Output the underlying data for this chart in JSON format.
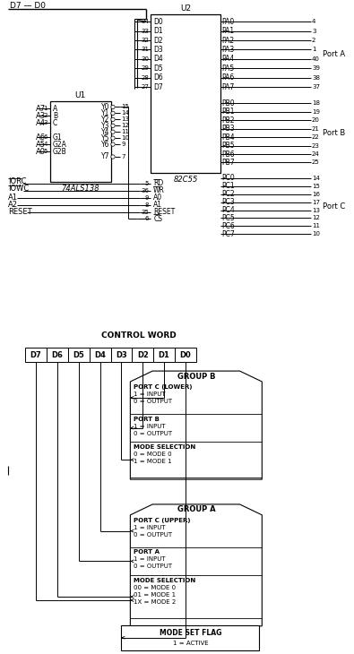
{
  "title_top": "D7 — D0",
  "chip_u2_label": "U2",
  "chip_u2_bottom": "82C55",
  "chip_u1_label": "U1",
  "chip_u1_bottom": "74ALS138",
  "port_a_label": "Port A",
  "port_b_label": "Port B",
  "port_c_label": "Port C",
  "d_pins": [
    "D0",
    "D1",
    "D2",
    "D3",
    "D4",
    "D5",
    "D6",
    "D7"
  ],
  "d_nums": [
    "34",
    "33",
    "32",
    "31",
    "30",
    "29",
    "28",
    "27"
  ],
  "ctrl_rows": [
    [
      "IORC",
      true,
      "5",
      "RD",
      true
    ],
    [
      "IOWC",
      true,
      "36",
      "WR",
      true
    ],
    [
      "A1",
      false,
      "9",
      "A0",
      false
    ],
    [
      "A2",
      false,
      "8",
      "A1",
      false
    ],
    [
      "RESET",
      false,
      "35",
      "RESET",
      false
    ]
  ],
  "cs_pin": [
    "6",
    "CS",
    true
  ],
  "pa_pins": [
    "PA0",
    "PA1",
    "PA2",
    "PA3",
    "PA4",
    "PA5",
    "PA6",
    "PA7"
  ],
  "pa_nums": [
    "4",
    "3",
    "2",
    "1",
    "40",
    "39",
    "38",
    "37"
  ],
  "pb_pins": [
    "PB0",
    "PB1",
    "PB2",
    "PB3",
    "PB4",
    "PB5",
    "PB6",
    "PB7"
  ],
  "pb_nums": [
    "18",
    "19",
    "20",
    "21",
    "22",
    "23",
    "24",
    "25"
  ],
  "pc_pins": [
    "PC0",
    "PC1",
    "PC2",
    "PC3",
    "PC4",
    "PC5",
    "PC6",
    "PC7"
  ],
  "pc_nums": [
    "14",
    "15",
    "16",
    "17",
    "13",
    "12",
    "11",
    "10"
  ],
  "u1_left": [
    [
      "A7",
      "1",
      "A"
    ],
    [
      "A3",
      "2",
      "B"
    ],
    [
      "A4",
      "3",
      "C"
    ],
    [
      "A6",
      "6",
      "G1"
    ],
    [
      "A5",
      "4",
      "G2A"
    ],
    [
      "A0",
      "5",
      "G2B"
    ]
  ],
  "u1_right": [
    [
      "Y0",
      "15"
    ],
    [
      "Y1",
      "14"
    ],
    [
      "Y2",
      "13"
    ],
    [
      "Y3",
      "12"
    ],
    [
      "Y4",
      "11"
    ],
    [
      "Y5",
      "10"
    ],
    [
      "Y6",
      "9"
    ],
    [
      "Y7",
      "7"
    ]
  ],
  "control_word_title": "CONTROL WORD",
  "control_bits": [
    "D7",
    "D6",
    "D5",
    "D4",
    "D3",
    "D2",
    "D1",
    "D0"
  ],
  "group_b_title": "GROUP B",
  "group_b_sections": [
    {
      "title": "PORT C (LOWER)",
      "lines": [
        "1 = INPUT",
        "0 = OUTPUT"
      ]
    },
    {
      "title": "PORT B",
      "lines": [
        "1 = INPUT",
        "0 = OUTPUT"
      ]
    },
    {
      "title": "MODE SELECTION",
      "lines": [
        "0 = MODE 0",
        "1 = MODE 1"
      ]
    }
  ],
  "group_a_title": "GROUP A",
  "group_a_sections": [
    {
      "title": "PORT C (UPPER)",
      "lines": [
        "1 = INPUT",
        "0 = OUTPUT"
      ]
    },
    {
      "title": "PORT A",
      "lines": [
        "1 = INPUT",
        "0 = OUTPUT"
      ]
    },
    {
      "title": "MODE SELECTION",
      "lines": [
        "00 = MODE 0",
        "01 = MODE 1",
        "1X = MODE 2"
      ]
    }
  ],
  "mode_set_flag_title": "MODE SET FLAG",
  "mode_set_flag_line": "1 = ACTIVE"
}
